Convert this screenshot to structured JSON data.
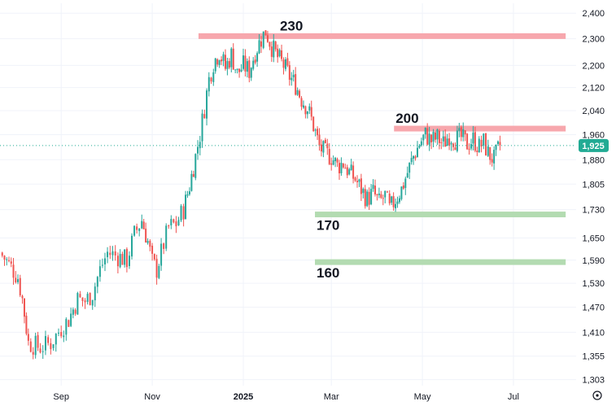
{
  "chart_data": {
    "type": "candlestick",
    "y_scale": "log",
    "y_ticks": [
      "2,400",
      "2,300",
      "2,200",
      "2,120",
      "2,040",
      "1,960",
      "1,880",
      "1,805",
      "1,730",
      "1,650",
      "1,590",
      "1,530",
      "1,470",
      "1,410",
      "1,355",
      "1,303"
    ],
    "x_ticks": [
      {
        "label": "Sep",
        "date": "2024-09-01"
      },
      {
        "label": "Nov",
        "date": "2024-11-01"
      },
      {
        "label": "2025",
        "date": "2025-01-01",
        "bold": true
      },
      {
        "label": "Mar",
        "date": "2025-03-01"
      },
      {
        "label": "May",
        "date": "2025-05-01"
      },
      {
        "label": "Jul",
        "date": "2025-07-01"
      }
    ],
    "x_range": [
      "2024-07-22",
      "2025-08-12"
    ],
    "y_range": [
      1290,
      2440
    ],
    "last_price": {
      "value": 1925,
      "label": "1,925"
    },
    "levels": [
      {
        "label": "230",
        "value": 2310,
        "kind": "resistance",
        "from": "2024-12-02",
        "to": "2025-08-05"
      },
      {
        "label": "200",
        "value": 1980,
        "kind": "resistance",
        "from": "2025-04-12",
        "to": "2025-08-05"
      },
      {
        "label": "170",
        "value": 1716,
        "kind": "support",
        "from": "2025-02-18",
        "to": "2025-08-05"
      },
      {
        "label": "160",
        "value": 1585,
        "kind": "support",
        "from": "2025-02-18",
        "to": "2025-08-05"
      }
    ],
    "series_close": [
      [
        "2024-07-22",
        1610
      ],
      [
        "2024-07-28",
        1580
      ],
      [
        "2024-08-03",
        1545
      ],
      [
        "2024-08-06",
        1490
      ],
      [
        "2024-08-10",
        1385
      ],
      [
        "2024-08-18",
        1375
      ],
      [
        "2024-08-25",
        1385
      ],
      [
        "2024-09-01",
        1420
      ],
      [
        "2024-09-06",
        1440
      ],
      [
        "2024-09-12",
        1490
      ],
      [
        "2024-09-17",
        1485
      ],
      [
        "2024-09-22",
        1505
      ],
      [
        "2024-09-27",
        1565
      ],
      [
        "2024-10-02",
        1610
      ],
      [
        "2024-10-09",
        1600
      ],
      [
        "2024-10-15",
        1590
      ],
      [
        "2024-10-20",
        1660
      ],
      [
        "2024-10-25",
        1700
      ],
      [
        "2024-10-29",
        1640
      ],
      [
        "2024-11-01",
        1585
      ],
      [
        "2024-11-04",
        1565
      ],
      [
        "2024-11-07",
        1610
      ],
      [
        "2024-11-12",
        1680
      ],
      [
        "2024-11-17",
        1690
      ],
      [
        "2024-11-22",
        1730
      ],
      [
        "2024-11-26",
        1800
      ],
      [
        "2024-11-30",
        1890
      ],
      [
        "2024-12-03",
        1960
      ],
      [
        "2024-12-06",
        2050
      ],
      [
        "2024-12-09",
        2150
      ],
      [
        "2024-12-12",
        2210
      ],
      [
        "2024-12-16",
        2250
      ],
      [
        "2024-12-20",
        2190
      ],
      [
        "2024-12-24",
        2240
      ],
      [
        "2024-12-28",
        2170
      ],
      [
        "2025-01-01",
        2200
      ],
      [
        "2025-01-05",
        2180
      ],
      [
        "2025-01-09",
        2250
      ],
      [
        "2025-01-13",
        2300
      ],
      [
        "2025-01-16",
        2330
      ],
      [
        "2025-01-20",
        2270
      ],
      [
        "2025-01-24",
        2230
      ],
      [
        "2025-01-28",
        2200
      ],
      [
        "2025-02-01",
        2160
      ],
      [
        "2025-02-05",
        2130
      ],
      [
        "2025-02-09",
        2080
      ],
      [
        "2025-02-13",
        2050
      ],
      [
        "2025-02-17",
        1990
      ],
      [
        "2025-02-21",
        1920
      ],
      [
        "2025-02-25",
        1900
      ],
      [
        "2025-03-01",
        1890
      ],
      [
        "2025-03-05",
        1860
      ],
      [
        "2025-03-09",
        1870
      ],
      [
        "2025-03-13",
        1840
      ],
      [
        "2025-03-17",
        1820
      ],
      [
        "2025-03-21",
        1790
      ],
      [
        "2025-03-25",
        1760
      ],
      [
        "2025-03-29",
        1780
      ],
      [
        "2025-04-02",
        1750
      ],
      [
        "2025-04-06",
        1770
      ],
      [
        "2025-04-09",
        1730
      ],
      [
        "2025-04-13",
        1760
      ],
      [
        "2025-04-17",
        1790
      ],
      [
        "2025-04-21",
        1840
      ],
      [
        "2025-04-25",
        1890
      ],
      [
        "2025-04-29",
        1930
      ],
      [
        "2025-05-03",
        1960
      ],
      [
        "2025-05-07",
        1940
      ],
      [
        "2025-05-11",
        1950
      ],
      [
        "2025-05-15",
        1930
      ],
      [
        "2025-05-19",
        1960
      ],
      [
        "2025-05-23",
        1945
      ],
      [
        "2025-05-27",
        1950
      ],
      [
        "2025-05-31",
        1930
      ],
      [
        "2025-06-04",
        1945
      ],
      [
        "2025-06-08",
        1920
      ],
      [
        "2025-06-11",
        1935
      ],
      [
        "2025-06-14",
        1900
      ],
      [
        "2025-06-18",
        1880
      ],
      [
        "2025-06-22",
        1925
      ]
    ]
  },
  "ui": {
    "settings_icon": "gear-icon",
    "colors": {
      "up": "#26a69a",
      "down": "#ef5350",
      "resistance": "#f7a7ad",
      "support": "#b3dbb1",
      "price_badge": "#22ab94",
      "price_line": "#22ab94",
      "grid": "#f0f3fa",
      "text": "#131722"
    }
  }
}
